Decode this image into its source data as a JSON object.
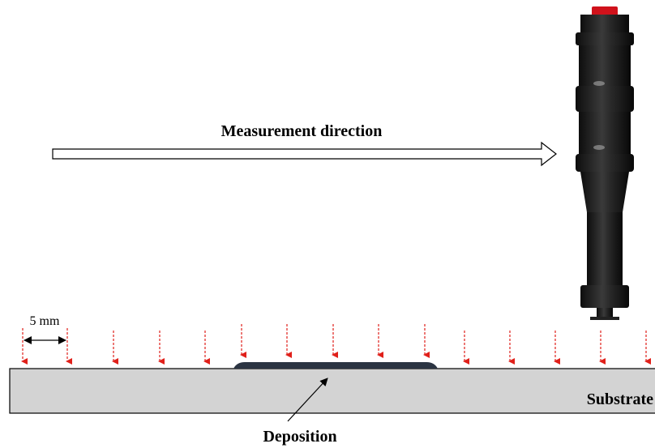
{
  "arrow_label": "Measurement direction",
  "scale_label": "5 mm",
  "deposition_label": "Deposition",
  "substrate_label": "Substrate"
}
